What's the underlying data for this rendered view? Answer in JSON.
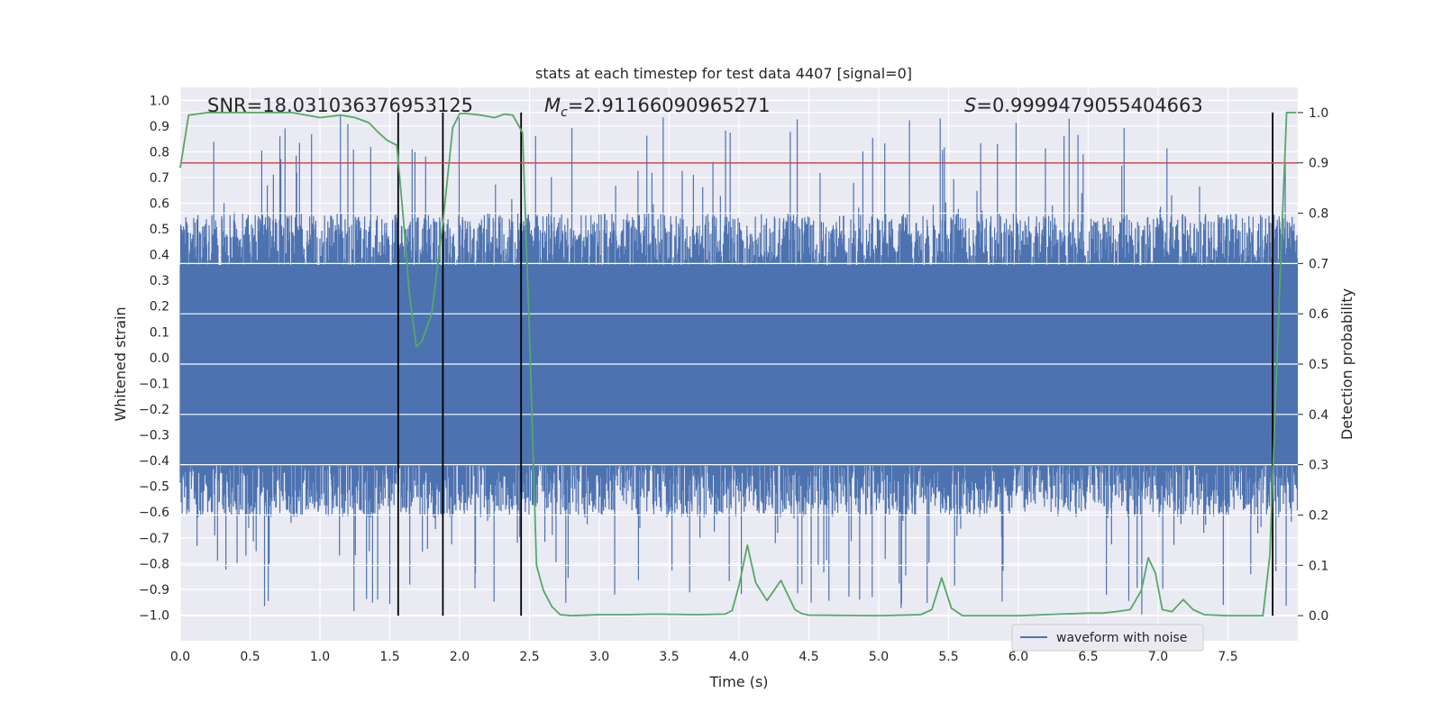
{
  "chart_data": {
    "type": "line",
    "title": "stats at each timestep for test data 4407 [signal=0]",
    "xlabel": "Time (s)",
    "ylabel": "Whitened strain",
    "ylabel_right": "Detection probability",
    "xlim": [
      0.0,
      8.0
    ],
    "ylim": [
      -1.1,
      1.05
    ],
    "ylim_right": [
      -0.05,
      1.05
    ],
    "x_ticks": [
      "0.0",
      "0.5",
      "1.0",
      "1.5",
      "2.0",
      "2.5",
      "3.0",
      "3.5",
      "4.0",
      "4.5",
      "5.0",
      "5.5",
      "6.0",
      "6.5",
      "7.0",
      "7.5"
    ],
    "y_ticks": [
      "1.0",
      "0.9",
      "0.8",
      "0.7",
      "0.6",
      "0.5",
      "0.4",
      "0.3",
      "0.2",
      "0.1",
      "0.0",
      "-0.1",
      "-0.2",
      "-0.3",
      "-0.4",
      "-0.5",
      "-0.6",
      "-0.7",
      "-0.8",
      "-0.9",
      "-1.0"
    ],
    "y_ticks_right": [
      "1.0",
      "0.9",
      "0.8",
      "0.7",
      "0.6",
      "0.5",
      "0.4",
      "0.3",
      "0.2",
      "0.1",
      "0.0"
    ],
    "annotations": {
      "snr": "SNR=18.031036376953125",
      "mc": "=2.91166090965271",
      "mc_symbol": "M",
      "mc_subscript": "c",
      "s": "=0.9999479055404663",
      "s_symbol": "S"
    },
    "legend": {
      "label": "waveform with noise",
      "position": "lower-right"
    },
    "threshold": {
      "value": 0.9,
      "axis": "right",
      "color": "#c44e52"
    },
    "vertical_lines": [
      1.56,
      1.88,
      2.44,
      7.82
    ],
    "waveform": {
      "name": "waveform with noise",
      "color": "#4c72b0",
      "core_range": [
        -0.42,
        0.36
      ],
      "extreme_range": [
        -1.0,
        0.94
      ]
    },
    "series": [
      {
        "name": "Detection probability",
        "color": "#55a868",
        "axis": "right",
        "x": [
          0.0,
          0.06,
          0.2,
          0.5,
          0.8,
          1.0,
          1.15,
          1.25,
          1.35,
          1.42,
          1.48,
          1.55,
          1.6,
          1.64,
          1.69,
          1.73,
          1.8,
          1.88,
          1.95,
          2.0,
          2.05,
          2.15,
          2.25,
          2.32,
          2.38,
          2.45,
          2.5,
          2.55,
          2.6,
          2.66,
          2.72,
          2.8,
          3.0,
          3.2,
          3.4,
          3.7,
          3.9,
          3.95,
          4.0,
          4.06,
          4.12,
          4.2,
          4.3,
          4.4,
          4.45,
          4.5,
          5.0,
          5.3,
          5.38,
          5.45,
          5.52,
          5.6,
          6.0,
          6.3,
          6.5,
          6.6,
          6.7,
          6.8,
          6.88,
          6.93,
          6.98,
          7.03,
          7.1,
          7.18,
          7.25,
          7.33,
          7.5,
          7.75,
          7.8,
          7.87,
          7.92,
          7.99
        ],
        "values": [
          0.89,
          0.995,
          1.0,
          1.0,
          1.0,
          0.99,
          0.995,
          0.99,
          0.98,
          0.96,
          0.945,
          0.935,
          0.78,
          0.64,
          0.535,
          0.545,
          0.6,
          0.78,
          0.97,
          0.998,
          0.998,
          0.995,
          0.99,
          0.997,
          0.995,
          0.96,
          0.56,
          0.1,
          0.05,
          0.018,
          0.002,
          0.0,
          0.002,
          0.002,
          0.003,
          0.002,
          0.003,
          0.01,
          0.06,
          0.14,
          0.065,
          0.03,
          0.07,
          0.012,
          0.004,
          0.001,
          0.0,
          0.002,
          0.012,
          0.075,
          0.015,
          0.0,
          0.0,
          0.003,
          0.005,
          0.005,
          0.008,
          0.012,
          0.05,
          0.115,
          0.085,
          0.012,
          0.008,
          0.032,
          0.012,
          0.002,
          0.0,
          0.0,
          0.12,
          0.65,
          1.0,
          1.0
        ]
      }
    ]
  }
}
